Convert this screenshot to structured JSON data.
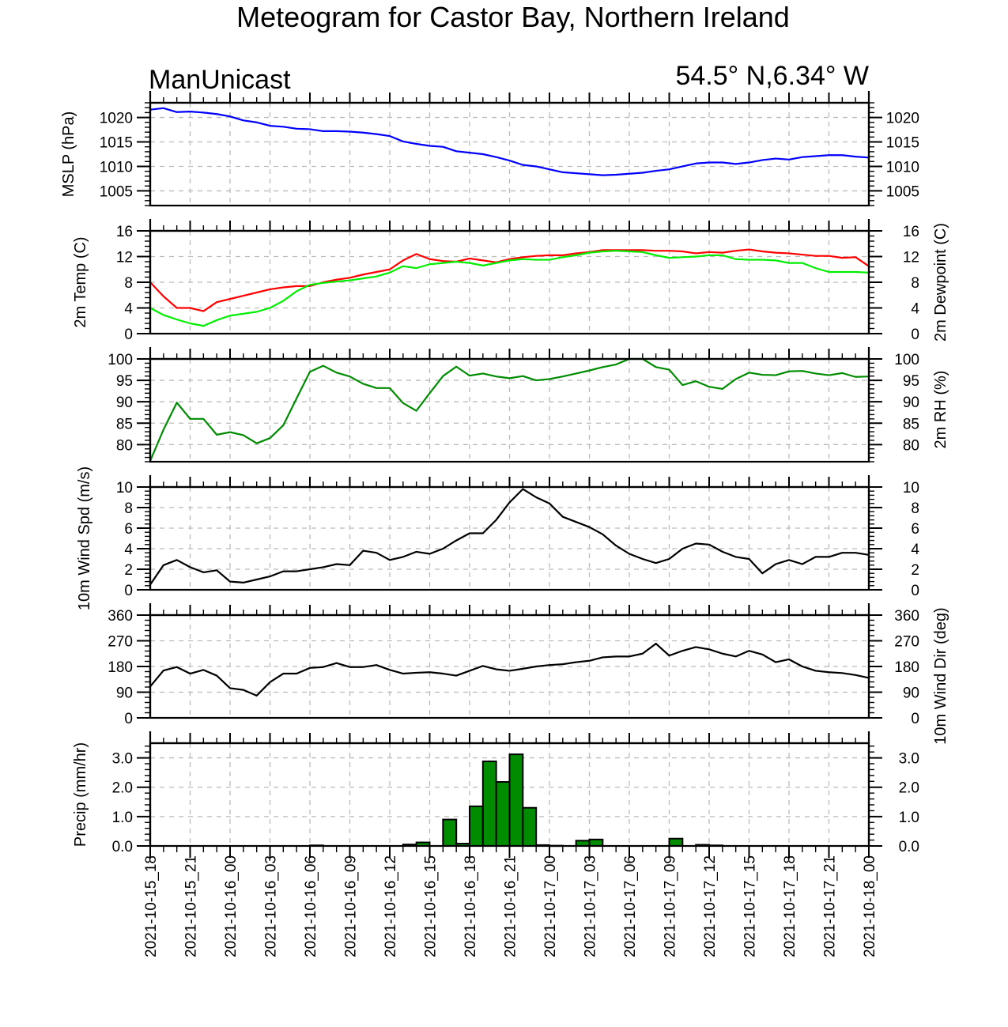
{
  "title": "Meteogram for Castor Bay, Northern Ireland",
  "left_string": "ManUnicast",
  "right_string": "54.5° N,6.34° W",
  "colors": {
    "mslp": "#0000ff",
    "temp": "#ff0000",
    "dewpoint": "#00ee00",
    "rh": "#008c00",
    "wind": "#000000",
    "precip_fill": "#008c00",
    "grid": "#bbbbbb"
  },
  "chart_data": {
    "type": "line",
    "x_ticks": [
      "2021-10-15_18",
      "2021-10-15_21",
      "2021-10-16_00",
      "2021-10-16_03",
      "2021-10-16_06",
      "2021-10-16_09",
      "2021-10-16_12",
      "2021-10-16_15",
      "2021-10-16_18",
      "2021-10-16_21",
      "2021-10-17_00",
      "2021-10-17_03",
      "2021-10-17_06",
      "2021-10-17_09",
      "2021-10-17_12",
      "2021-10-17_15",
      "2021-10-17_18",
      "2021-10-17_21",
      "2021-10-18_00"
    ],
    "x_range_hours": [
      0,
      54
    ],
    "grid": true,
    "panels": [
      {
        "name": "mslp",
        "ylabel_left": "MSLP (hPa)",
        "ylabel_right": "",
        "ylim": [
          1002,
          1023
        ],
        "ticks": [
          1005,
          1010,
          1015,
          1020
        ],
        "tick_labels": [
          "1005",
          "1010",
          "1015",
          "1020"
        ],
        "right_tick_labels": [
          "1005",
          "1010",
          "1015",
          "1020"
        ],
        "series": [
          {
            "name": "MSLP",
            "color_key": "mslp",
            "values": [
              1021.6,
              1021.9,
              1021.1,
              1021.2,
              1021.0,
              1020.7,
              1020.2,
              1019.4,
              1019.0,
              1018.3,
              1018.1,
              1017.7,
              1017.6,
              1017.2,
              1017.2,
              1017.1,
              1016.9,
              1016.6,
              1016.2,
              1015.1,
              1014.6,
              1014.2,
              1014.0,
              1013.1,
              1012.8,
              1012.5,
              1011.9,
              1011.2,
              1010.3,
              1010.0,
              1009.4,
              1008.8,
              1008.6,
              1008.4,
              1008.2,
              1008.3,
              1008.5,
              1008.7,
              1009.1,
              1009.4,
              1010.0,
              1010.6,
              1010.8,
              1010.8,
              1010.5,
              1010.8,
              1011.3,
              1011.6,
              1011.4,
              1011.9,
              1012.1,
              1012.3,
              1012.3,
              1012.0,
              1011.8
            ]
          }
        ]
      },
      {
        "name": "temp",
        "ylabel_left": "2m Temp (C)",
        "ylabel_right": "2m Dewpoint (C)",
        "ylim": [
          0,
          16
        ],
        "ticks": [
          0,
          4,
          8,
          12,
          16
        ],
        "tick_labels": [
          "0",
          "4",
          "8",
          "12",
          "16"
        ],
        "right_tick_labels": [
          "0",
          "4",
          "8",
          "12",
          "16"
        ],
        "series": [
          {
            "name": "Temperature",
            "color_key": "temp",
            "values": [
              8.0,
              5.8,
              4.0,
              4.0,
              3.5,
              4.9,
              5.4,
              5.9,
              6.4,
              6.9,
              7.2,
              7.4,
              7.4,
              8.0,
              8.4,
              8.7,
              9.2,
              9.6,
              10.0,
              11.4,
              12.4,
              11.6,
              11.3,
              11.2,
              11.7,
              11.4,
              11.1,
              11.6,
              11.9,
              12.1,
              12.2,
              12.2,
              12.5,
              12.7,
              13.0,
              13.0,
              13.0,
              13.0,
              12.9,
              12.9,
              12.8,
              12.5,
              12.7,
              12.6,
              12.9,
              13.1,
              12.8,
              12.6,
              12.5,
              12.3,
              12.1,
              12.1,
              11.8,
              11.9,
              10.5
            ]
          },
          {
            "name": "Dewpoint",
            "color_key": "dewpoint",
            "values": [
              4.0,
              2.9,
              2.2,
              1.6,
              1.2,
              2.1,
              2.8,
              3.1,
              3.4,
              4.0,
              5.1,
              6.6,
              7.6,
              7.9,
              8.1,
              8.3,
              8.6,
              8.9,
              9.5,
              10.5,
              10.2,
              10.8,
              11.0,
              11.2,
              11.0,
              10.6,
              11.0,
              11.4,
              11.6,
              11.5,
              11.5,
              11.9,
              12.2,
              12.6,
              12.8,
              12.9,
              12.8,
              12.7,
              12.2,
              11.8,
              11.9,
              12.0,
              12.2,
              12.2,
              11.6,
              11.5,
              11.5,
              11.4,
              11.0,
              11.0,
              10.2,
              9.6,
              9.6,
              9.6,
              9.5
            ]
          }
        ]
      },
      {
        "name": "rh",
        "ylabel_left": "",
        "ylabel_right": "2m RH (%)",
        "ylim": [
          76,
          100
        ],
        "ticks": [
          80,
          85,
          90,
          95,
          100
        ],
        "tick_labels": [
          "80",
          "85",
          "90",
          "95",
          "100"
        ],
        "right_tick_labels": [
          "80",
          "85",
          "90",
          "95",
          "100"
        ],
        "series": [
          {
            "name": "RH",
            "color_key": "rh",
            "values": [
              76.2,
              83.5,
              89.8,
              86.0,
              86.0,
              82.3,
              82.9,
              82.2,
              80.3,
              81.5,
              84.5,
              90.8,
              97.0,
              98.4,
              96.8,
              95.9,
              94.2,
              93.2,
              93.2,
              89.7,
              87.9,
              92.0,
              96.0,
              98.2,
              96.1,
              96.6,
              95.9,
              95.5,
              96.0,
              95.0,
              95.3,
              95.9,
              96.6,
              97.3,
              98.1,
              98.7,
              100.0,
              100.0,
              98.1,
              97.5,
              93.9,
              94.8,
              93.5,
              93.0,
              95.3,
              96.8,
              96.3,
              96.2,
              97.1,
              97.2,
              96.6,
              96.2,
              96.7,
              95.8,
              95.9
            ]
          }
        ]
      },
      {
        "name": "wspd",
        "ylabel_left": "10m Wind Spd (m/s)",
        "ylabel_right": "",
        "ylim": [
          0,
          10
        ],
        "ticks": [
          0,
          2,
          4,
          6,
          8,
          10
        ],
        "tick_labels": [
          "0",
          "2",
          "4",
          "6",
          "8",
          "10"
        ],
        "right_tick_labels": [
          "0",
          "2",
          "4",
          "6",
          "8",
          "10"
        ],
        "series": [
          {
            "name": "Wind speed",
            "color_key": "wind",
            "values": [
              0.5,
              2.4,
              2.9,
              2.2,
              1.7,
              1.9,
              0.8,
              0.7,
              1.0,
              1.3,
              1.8,
              1.8,
              2.0,
              2.2,
              2.5,
              2.4,
              3.8,
              3.6,
              2.9,
              3.2,
              3.7,
              3.5,
              4.0,
              4.8,
              5.5,
              5.5,
              6.8,
              8.5,
              9.8,
              9.0,
              8.4,
              7.1,
              6.6,
              6.1,
              5.4,
              4.3,
              3.5,
              3.0,
              2.6,
              3.0,
              4.0,
              4.5,
              4.4,
              3.7,
              3.2,
              3.0,
              1.6,
              2.5,
              2.9,
              2.5,
              3.2,
              3.2,
              3.6,
              3.6,
              3.4
            ]
          }
        ]
      },
      {
        "name": "wdir",
        "ylabel_left": "",
        "ylabel_right": "10m Wind Dir (deg)",
        "ylim": [
          0,
          360
        ],
        "ticks": [
          0,
          90,
          180,
          270,
          360
        ],
        "tick_labels": [
          "0",
          "90",
          "180",
          "270",
          "360"
        ],
        "right_tick_labels": [
          "0",
          "90",
          "180",
          "270",
          "360"
        ],
        "series": [
          {
            "name": "Wind direction",
            "color_key": "wind",
            "values": [
              110,
              166,
              178,
              155,
              168,
              148,
              104,
              98,
              78,
              125,
              155,
              155,
              175,
              178,
              192,
              178,
              178,
              185,
              168,
              155,
              158,
              160,
              155,
              148,
              165,
              182,
              170,
              165,
              172,
              180,
              185,
              188,
              195,
              200,
              212,
              215,
              215,
              225,
              260,
              218,
              235,
              248,
              240,
              225,
              215,
              235,
              222,
              195,
              205,
              180,
              165,
              160,
              157,
              150,
              140
            ]
          }
        ]
      },
      {
        "name": "precip",
        "type": "bar",
        "ylabel_left": "Precip (mm/hr)",
        "ylabel_right": "",
        "ylim": [
          0,
          3.5
        ],
        "ticks": [
          0,
          1,
          2,
          3
        ],
        "tick_labels": [
          "0.0",
          "1.0",
          "2.0",
          "3.0"
        ],
        "right_tick_labels": [
          "0.0",
          "1.0",
          "2.0",
          "3.0"
        ],
        "series": [
          {
            "name": "Precipitation",
            "color_key": "precip_fill",
            "values": [
              0,
              0,
              0,
              0,
              0,
              0,
              0,
              0,
              0,
              0,
              0,
              0,
              0.02,
              0,
              0,
              0,
              0,
              0,
              0,
              0.05,
              0.12,
              0,
              0.9,
              0.08,
              1.35,
              2.88,
              2.18,
              3.12,
              1.3,
              0.03,
              0.01,
              0,
              0.18,
              0.22,
              0,
              0,
              0,
              0,
              0,
              0.25,
              0,
              0.04,
              0.02,
              0,
              0,
              0,
              0,
              0,
              0,
              0,
              0,
              0,
              0,
              0
            ]
          }
        ]
      }
    ]
  }
}
